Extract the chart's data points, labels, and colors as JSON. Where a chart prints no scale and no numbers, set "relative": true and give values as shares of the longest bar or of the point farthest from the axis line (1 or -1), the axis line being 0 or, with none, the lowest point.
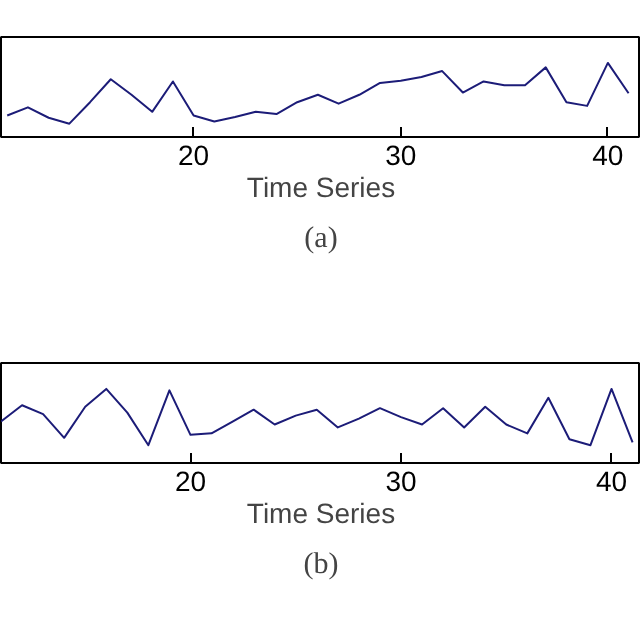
{
  "chart_data": [
    {
      "type": "line",
      "relative": true,
      "xlabel": "Time Series",
      "annotations": [
        "(a)"
      ],
      "xlim": [
        10.7,
        41.6
      ],
      "xticks": [
        20,
        30,
        40
      ],
      "x": [
        11,
        12,
        13,
        14,
        15,
        16,
        17,
        18,
        19,
        20,
        21,
        22,
        23,
        24,
        25,
        26,
        27,
        28,
        29,
        30,
        31,
        32,
        33,
        34,
        35,
        36,
        37,
        38,
        39,
        40,
        41
      ],
      "series": [
        {
          "color": "#1c1c78",
          "values": [
            0.29,
            0.4,
            0.26,
            0.18,
            0.47,
            0.78,
            0.57,
            0.34,
            0.75,
            0.29,
            0.21,
            0.27,
            0.34,
            0.31,
            0.47,
            0.57,
            0.45,
            0.57,
            0.73,
            0.76,
            0.81,
            0.89,
            0.6,
            0.75,
            0.7,
            0.7,
            0.94,
            0.47,
            0.42,
            1,
            0.59
          ]
        }
      ]
    },
    {
      "type": "line",
      "relative": true,
      "xlabel": "Time Series",
      "annotations": [
        "(b)"
      ],
      "xlim": [
        11.0,
        41.4
      ],
      "xticks": [
        20,
        30,
        40
      ],
      "x": [
        11,
        12,
        13,
        14,
        15,
        16,
        17,
        18,
        19,
        20,
        21,
        22,
        23,
        24,
        25,
        26,
        27,
        28,
        29,
        30,
        31,
        32,
        33,
        34,
        35,
        36,
        37,
        38,
        39,
        40,
        41
      ],
      "series": [
        {
          "color": "#1c1c78",
          "values": [
            0.56,
            0.78,
            0.66,
            0.34,
            0.76,
            1,
            0.68,
            0.24,
            0.98,
            0.38,
            0.4,
            0.56,
            0.72,
            0.52,
            0.64,
            0.72,
            0.48,
            0.6,
            0.74,
            0.62,
            0.52,
            0.74,
            0.48,
            0.76,
            0.52,
            0.4,
            0.88,
            0.32,
            0.24,
            1,
            0.28
          ]
        }
      ]
    }
  ]
}
